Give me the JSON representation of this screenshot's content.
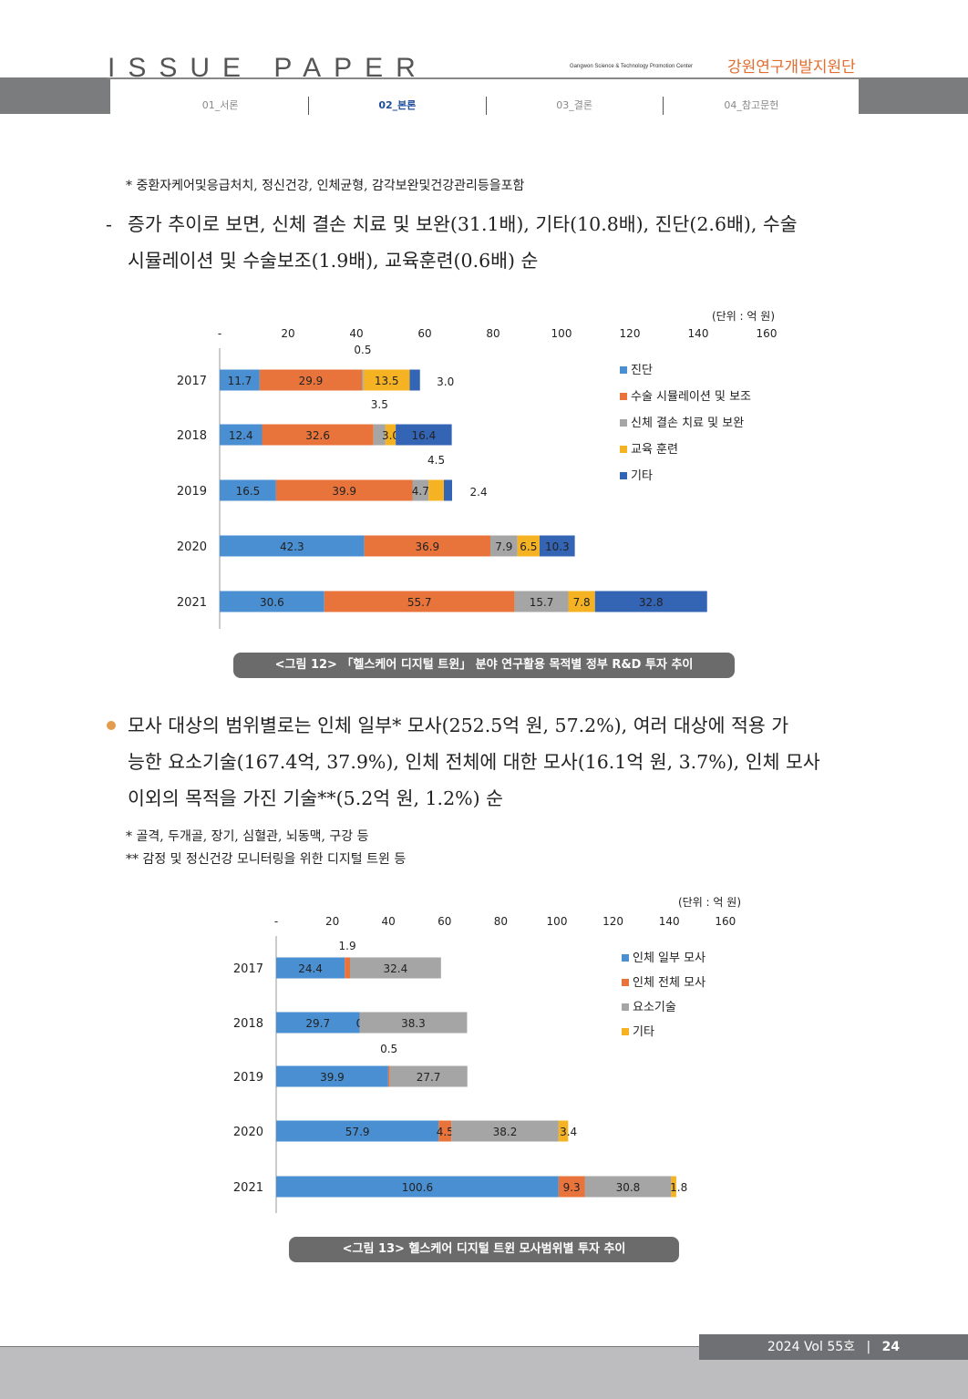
{
  "header": {
    "title": "ISSUE PAPER",
    "subtitle_en": "Gangwon Science & Technology Promotion Center",
    "subtitle_kr": "강원연구개발지원단",
    "tabs": [
      "01_서론",
      "02_본론",
      "03_결론",
      "04_참고문헌"
    ],
    "active_tab": "02_본론",
    "accent_color": "#e36c2f",
    "active_color": "#1f4e9b"
  },
  "content": {
    "note1": "* 중환자케어및응급처치, 정신건강, 인체균형, 감각보완및건강관리등을포함",
    "dash_marker": "-",
    "para1_line1": "증가 추이로 보면, 신체 결손 치료 및 보완(31.1배), 기타(10.8배), 진단(2.6배), 수술",
    "para1_line2": "시뮬레이션 및 수술보조(1.9배), 교육훈련(0.6배) 순",
    "para2_line1": "모사 대상의 범위별로는 인체 일부* 모사(252.5억 원, 57.2%), 여러 대상에 적용 가",
    "para2_line2": "능한 요소기술(167.4억, 37.9%), 인체 전체에 대한 모사(16.1억 원, 3.7%), 인체 모사",
    "para2_line3": "이외의 목적을 가진 기술**(5.2억 원, 1.2%) 순",
    "note2": "* 골격, 두개골, 장기, 심혈관, 뇌동맥, 구강 등",
    "note3": "** 감정 및 정신건강 모니터링을 위한 디지털 트윈 등",
    "caption12": "<그림 12> 「헬스케어 디지털 트윈」 분야 연구활용 목적별 정부 R&D 투자 추이",
    "caption13": "<그림 13> 헬스케어 디지털 트윈 모사범위별 투자 추이"
  },
  "footer": {
    "issue": "2024 Vol 55호",
    "separator": "|",
    "page": "24"
  },
  "chart_data": [
    {
      "type": "bar",
      "orientation": "horizontal",
      "stacked": true,
      "unit": "(단위 : 억 원)",
      "axis_ticks": [
        "-",
        "20",
        "40",
        "60",
        "80",
        "100",
        "120",
        "140",
        "160"
      ],
      "xlim": [
        0,
        160
      ],
      "categories": [
        "2017",
        "2018",
        "2019",
        "2020",
        "2021"
      ],
      "series": [
        {
          "name": "진단",
          "color": "#4a8fd1",
          "values": [
            11.7,
            12.4,
            16.5,
            42.3,
            30.6
          ]
        },
        {
          "name": "수술 시뮬레이션 및 보조",
          "color": "#e8743b",
          "values": [
            29.9,
            32.6,
            39.9,
            36.9,
            55.7
          ]
        },
        {
          "name": "신체 결손 치료 및 보완",
          "color": "#a5a5a5",
          "values": [
            0.5,
            3.5,
            4.7,
            7.9,
            15.7
          ]
        },
        {
          "name": "교육 훈련",
          "color": "#f5b324",
          "values": [
            13.5,
            3.0,
            4.5,
            6.5,
            7.8
          ]
        },
        {
          "name": "기타",
          "color": "#3464b4",
          "values": [
            3.0,
            16.4,
            2.4,
            10.3,
            32.8
          ]
        }
      ],
      "labels": [
        [
          "11.7",
          "29.9",
          "0.5",
          "13.5",
          "3.0"
        ],
        [
          "12.4",
          "32.6",
          "3.5",
          "3.0",
          "16.4"
        ],
        [
          "16.5",
          "39.9",
          "4.7",
          "4.5",
          "2.4"
        ],
        [
          "42.3",
          "36.9",
          "7.9",
          "6.5",
          "10.3"
        ],
        [
          "30.6",
          "55.7",
          "15.7",
          "7.8",
          "32.8"
        ]
      ],
      "legend_position": "right"
    },
    {
      "type": "bar",
      "orientation": "horizontal",
      "stacked": true,
      "unit": "(단위 : 억 원)",
      "axis_ticks": [
        "-",
        "20",
        "40",
        "60",
        "80",
        "100",
        "120",
        "140",
        "160"
      ],
      "xlim": [
        0,
        160
      ],
      "categories": [
        "2017",
        "2018",
        "2019",
        "2020",
        "2021"
      ],
      "series": [
        {
          "name": "인체 일부 모사",
          "color": "#4a8fd1",
          "values": [
            24.4,
            29.7,
            39.9,
            57.9,
            100.6
          ]
        },
        {
          "name": "인체 전체 모사",
          "color": "#e8743b",
          "values": [
            1.9,
            0,
            0.5,
            4.5,
            9.3
          ]
        },
        {
          "name": "요소기술",
          "color": "#a5a5a5",
          "values": [
            32.4,
            38.3,
            27.7,
            38.2,
            30.8
          ]
        },
        {
          "name": "기타",
          "color": "#f5b324",
          "values": [
            0,
            0,
            0,
            3.4,
            1.8
          ]
        }
      ],
      "labels": [
        [
          "24.4",
          "1.9",
          "32.4",
          ""
        ],
        [
          "29.7",
          "0",
          "38.3",
          ""
        ],
        [
          "39.9",
          "0.5",
          "27.7",
          ""
        ],
        [
          "57.9",
          "4.5",
          "38.2",
          "3.4"
        ],
        [
          "100.6",
          "9.3",
          "30.8",
          "1.8"
        ]
      ],
      "legend_position": "right"
    }
  ]
}
